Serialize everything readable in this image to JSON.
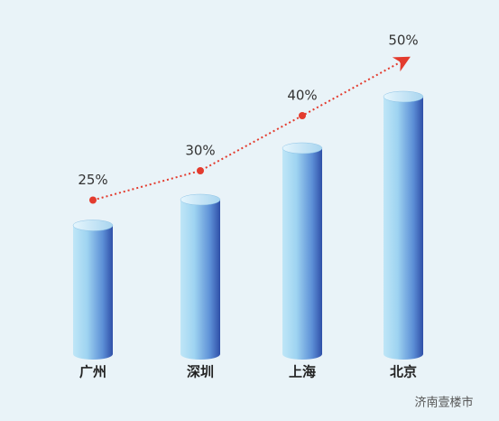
{
  "chart_data": {
    "type": "cylinder-bar-line",
    "categories": [
      "广州",
      "深圳",
      "上海",
      "北京"
    ],
    "values": [
      25,
      30,
      40,
      50
    ],
    "value_labels": [
      "25%",
      "30%",
      "40%",
      "50%"
    ],
    "color": "#5c8fd6",
    "line_color": "#e33b2e",
    "watermark": "济南壹楼市"
  }
}
